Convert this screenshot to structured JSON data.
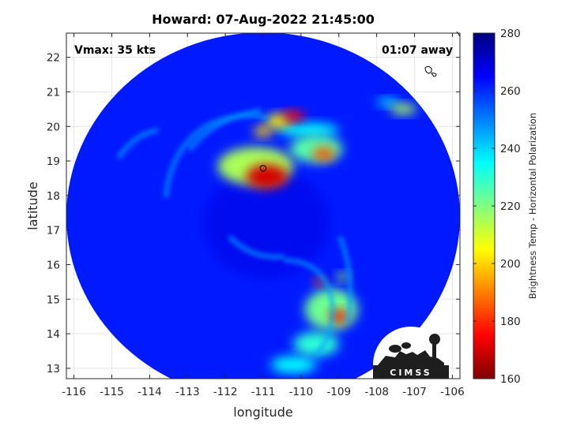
{
  "chart_data": {
    "type": "heatmap",
    "title": "Howard: 07-Aug-2022 21:45:00",
    "xlabel": "longitude",
    "ylabel": "latitude",
    "xlim": [
      -116.2,
      -105.8
    ],
    "ylim": [
      12.7,
      22.7
    ],
    "xticks": [
      -116,
      -115,
      -114,
      -113,
      -112,
      -111,
      -110,
      -109,
      -108,
      -107,
      -106
    ],
    "yticks": [
      13,
      14,
      15,
      16,
      17,
      18,
      19,
      20,
      21,
      22
    ],
    "grid": true,
    "annotations": {
      "vmax": "Vmax: 35 kts",
      "away": "01:07 away"
    },
    "colorbar": {
      "label": "Brightness Temp - Horizontal Polarization",
      "range": [
        160,
        280
      ],
      "ticks": [
        160,
        180,
        200,
        220,
        240,
        260,
        280
      ],
      "colormap": "jet"
    },
    "swath": {
      "center_lon": -111.0,
      "center_lat": 17.4,
      "background_tb": 262
    },
    "features": [
      {
        "lon": -110.9,
        "lat": 18.55,
        "rx": 0.55,
        "ry": 0.35,
        "tb": 170
      },
      {
        "lon": -111.2,
        "lat": 18.85,
        "rx": 1.0,
        "ry": 0.55,
        "tb": 215
      },
      {
        "lon": -110.2,
        "lat": 20.3,
        "rx": 0.3,
        "ry": 0.15,
        "tb": 175
      },
      {
        "lon": -110.6,
        "lat": 20.15,
        "rx": 0.35,
        "ry": 0.2,
        "tb": 205
      },
      {
        "lon": -111.0,
        "lat": 19.85,
        "rx": 0.25,
        "ry": 0.15,
        "tb": 200
      },
      {
        "lon": -109.4,
        "lat": 19.2,
        "rx": 0.3,
        "ry": 0.2,
        "tb": 185
      },
      {
        "lon": -109.6,
        "lat": 19.35,
        "rx": 0.7,
        "ry": 0.4,
        "tb": 225
      },
      {
        "lon": -109.8,
        "lat": 19.9,
        "rx": 0.8,
        "ry": 0.2,
        "tb": 235
      },
      {
        "lon": -109.0,
        "lat": 14.5,
        "rx": 0.25,
        "ry": 0.2,
        "tb": 178
      },
      {
        "lon": -109.2,
        "lat": 14.7,
        "rx": 0.7,
        "ry": 0.6,
        "tb": 222
      },
      {
        "lon": -109.5,
        "lat": 15.5,
        "rx": 0.15,
        "ry": 0.12,
        "tb": 185
      },
      {
        "lon": -108.9,
        "lat": 15.65,
        "rx": 0.15,
        "ry": 0.12,
        "tb": 215
      },
      {
        "lon": -109.6,
        "lat": 13.7,
        "rx": 0.6,
        "ry": 0.35,
        "tb": 230
      },
      {
        "lon": -110.2,
        "lat": 13.1,
        "rx": 0.6,
        "ry": 0.25,
        "tb": 235
      },
      {
        "lon": -107.3,
        "lat": 20.5,
        "rx": 0.35,
        "ry": 0.15,
        "tb": 215
      },
      {
        "lon": -107.7,
        "lat": 20.7,
        "rx": 0.3,
        "ry": 0.12,
        "tb": 238
      }
    ]
  }
}
